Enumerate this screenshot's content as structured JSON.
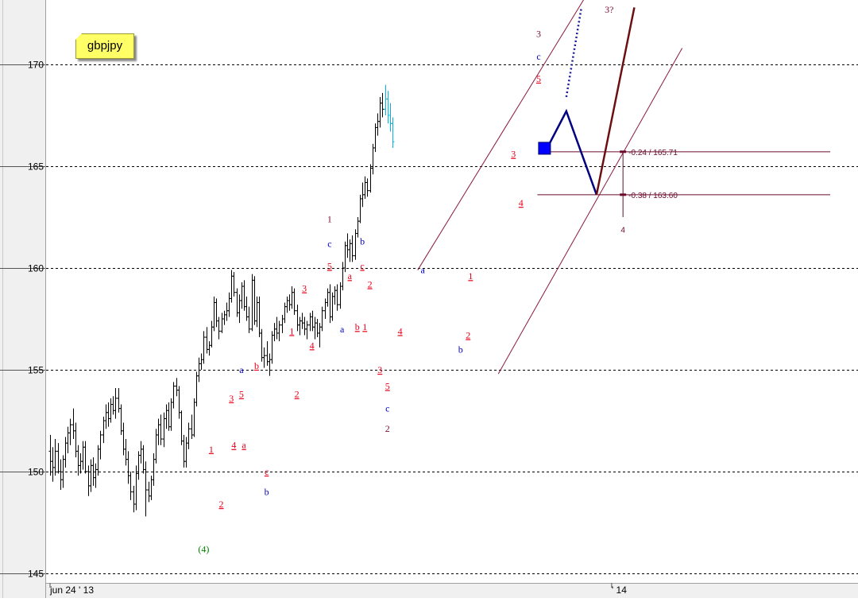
{
  "symbol_note": "gbpjpy",
  "colors": {
    "bars": "#000000",
    "last_bars": "#00b4e6",
    "channel": "#8b1a3a",
    "wave_red": "#e8001a",
    "wave_blue": "#0000cc",
    "wave_dark": "#7a1030",
    "wave_green": "#008000",
    "projection_blue": "#000080",
    "projection_brown": "#6b1010",
    "fib": "#6a0a2a",
    "marker": "#0000ff",
    "grid": "#000000",
    "axis_bg": "#f0f0f0"
  },
  "chart_data": {
    "type": "ohlc",
    "title": "",
    "ylim": [
      144.5,
      173.2
    ],
    "y_ticks": [
      145,
      150,
      155,
      160,
      165,
      170
    ],
    "y_tick_labels": [
      "145",
      "150",
      "155",
      "160",
      "165",
      "170"
    ],
    "x_labels": [
      {
        "text": "jun 24 ' 13",
        "x": 0
      },
      {
        "text": "' 14",
        "x": 223
      }
    ],
    "grid": "horizontal dashed at major ticks",
    "ohlc": [
      [
        151.0,
        151.8,
        149.8,
        150.5
      ],
      [
        150.5,
        151.2,
        149.5,
        150.2
      ],
      [
        150.2,
        151.6,
        149.8,
        151.0
      ],
      [
        151.0,
        151.4,
        149.9,
        150.0
      ],
      [
        150.0,
        150.6,
        149.1,
        149.6
      ],
      [
        149.6,
        150.8,
        149.2,
        150.6
      ],
      [
        150.6,
        151.7,
        150.2,
        151.4
      ],
      [
        151.4,
        152.2,
        150.9,
        151.9
      ],
      [
        151.9,
        152.6,
        151.3,
        152.3
      ],
      [
        152.3,
        153.1,
        151.6,
        152.0
      ],
      [
        152.0,
        152.4,
        150.7,
        151.0
      ],
      [
        151.0,
        151.3,
        149.8,
        150.3
      ],
      [
        150.3,
        150.9,
        149.9,
        150.5
      ],
      [
        150.5,
        151.5,
        150.1,
        151.2
      ],
      [
        151.2,
        151.5,
        149.9,
        150.0
      ],
      [
        150.0,
        150.3,
        148.8,
        149.3
      ],
      [
        149.3,
        150.6,
        149.0,
        150.3
      ],
      [
        150.3,
        150.7,
        149.3,
        149.7
      ],
      [
        149.7,
        150.4,
        149.2,
        150.1
      ],
      [
        150.1,
        151.3,
        149.8,
        151.1
      ],
      [
        151.1,
        152.0,
        150.6,
        151.8
      ],
      [
        151.8,
        152.7,
        151.4,
        152.5
      ],
      [
        152.5,
        153.3,
        152.1,
        152.9
      ],
      [
        152.9,
        153.4,
        152.2,
        152.6
      ],
      [
        152.6,
        153.6,
        152.4,
        153.3
      ],
      [
        153.3,
        153.7,
        152.8,
        153.0
      ],
      [
        153.0,
        154.1,
        152.6,
        153.6
      ],
      [
        153.6,
        154.1,
        152.9,
        153.1
      ],
      [
        153.1,
        153.3,
        151.8,
        152.0
      ],
      [
        152.0,
        152.4,
        150.8,
        151.1
      ],
      [
        151.1,
        151.6,
        150.3,
        150.6
      ],
      [
        150.6,
        151.0,
        149.4,
        149.8
      ],
      [
        149.8,
        150.0,
        148.6,
        149.0
      ],
      [
        149.0,
        149.3,
        148.0,
        148.4
      ],
      [
        148.4,
        150.3,
        148.1,
        149.9
      ],
      [
        149.9,
        151.0,
        149.6,
        150.8
      ],
      [
        150.8,
        151.5,
        150.4,
        151.1
      ],
      [
        151.1,
        151.3,
        149.9,
        150.1
      ],
      [
        150.1,
        150.5,
        147.8,
        149.1
      ],
      [
        149.1,
        149.5,
        148.5,
        148.8
      ],
      [
        148.8,
        149.8,
        148.6,
        149.6
      ],
      [
        149.6,
        150.9,
        149.3,
        150.6
      ],
      [
        150.6,
        152.1,
        150.4,
        151.8
      ],
      [
        151.8,
        152.6,
        151.3,
        152.3
      ],
      [
        152.3,
        152.8,
        151.3,
        151.6
      ],
      [
        151.6,
        152.9,
        151.2,
        152.6
      ],
      [
        152.6,
        153.3,
        152.1,
        153.0
      ],
      [
        153.0,
        153.4,
        152.0,
        152.2
      ],
      [
        152.2,
        153.6,
        152.0,
        153.4
      ],
      [
        153.4,
        154.4,
        153.1,
        154.2
      ],
      [
        154.2,
        154.6,
        153.7,
        154.0
      ],
      [
        154.0,
        154.2,
        152.6,
        152.9
      ],
      [
        152.9,
        153.0,
        151.3,
        151.5
      ],
      [
        151.5,
        151.8,
        150.2,
        150.5
      ],
      [
        150.5,
        151.7,
        150.2,
        151.4
      ],
      [
        151.4,
        152.4,
        151.1,
        152.1
      ],
      [
        152.1,
        152.8,
        151.6,
        151.8
      ],
      [
        151.8,
        153.6,
        151.7,
        153.4
      ],
      [
        153.4,
        154.9,
        153.2,
        154.7
      ],
      [
        154.7,
        155.6,
        154.4,
        155.3
      ],
      [
        155.3,
        155.8,
        155.0,
        155.5
      ],
      [
        155.5,
        156.9,
        155.3,
        156.6
      ],
      [
        156.6,
        157.1,
        155.8,
        156.0
      ],
      [
        156.0,
        156.4,
        155.7,
        156.2
      ],
      [
        156.2,
        157.4,
        156.1,
        157.1
      ],
      [
        157.1,
        158.6,
        156.9,
        158.3
      ],
      [
        158.3,
        158.5,
        157.1,
        157.4
      ],
      [
        157.4,
        157.6,
        156.5,
        156.9
      ],
      [
        156.9,
        157.8,
        156.8,
        157.5
      ],
      [
        157.5,
        157.9,
        157.2,
        157.7
      ],
      [
        157.7,
        158.3,
        157.4,
        157.9
      ],
      [
        157.9,
        158.8,
        157.6,
        158.5
      ],
      [
        158.5,
        159.9,
        158.3,
        159.6
      ],
      [
        159.6,
        159.8,
        158.6,
        158.8
      ],
      [
        158.8,
        159.0,
        157.6,
        157.8
      ],
      [
        157.8,
        158.7,
        157.3,
        158.4
      ],
      [
        158.4,
        159.3,
        158.0,
        159.1
      ],
      [
        159.1,
        159.4,
        157.9,
        158.1
      ],
      [
        158.1,
        158.6,
        157.4,
        157.6
      ],
      [
        157.6,
        158.1,
        156.8,
        157.0
      ],
      [
        157.0,
        159.7,
        156.9,
        159.4
      ],
      [
        159.4,
        159.6,
        157.2,
        157.4
      ],
      [
        157.4,
        158.6,
        157.1,
        158.3
      ],
      [
        158.3,
        158.6,
        156.6,
        156.8
      ],
      [
        156.8,
        157.0,
        155.4,
        155.6
      ],
      [
        155.6,
        156.1,
        155.1,
        155.7
      ],
      [
        155.7,
        156.4,
        155.2,
        155.4
      ],
      [
        155.4,
        155.8,
        154.7,
        155.5
      ],
      [
        155.5,
        156.9,
        155.3,
        156.7
      ],
      [
        156.7,
        157.3,
        156.4,
        157.0
      ],
      [
        157.0,
        157.6,
        156.5,
        156.8
      ],
      [
        156.8,
        157.4,
        156.4,
        157.2
      ],
      [
        157.2,
        157.7,
        156.8,
        157.5
      ],
      [
        157.5,
        158.3,
        157.3,
        158.1
      ],
      [
        158.1,
        158.6,
        157.8,
        158.4
      ],
      [
        158.4,
        158.7,
        157.9,
        158.2
      ],
      [
        158.2,
        159.1,
        158.0,
        158.8
      ],
      [
        158.8,
        159.0,
        157.7,
        157.9
      ],
      [
        157.9,
        158.2,
        156.9,
        157.2
      ],
      [
        157.2,
        157.6,
        156.7,
        157.4
      ],
      [
        157.4,
        157.8,
        157.0,
        157.3
      ],
      [
        157.3,
        157.6,
        156.7,
        157.0
      ],
      [
        157.0,
        157.4,
        156.5,
        157.2
      ],
      [
        157.2,
        157.8,
        156.9,
        157.6
      ],
      [
        157.6,
        157.9,
        156.9,
        157.1
      ],
      [
        157.1,
        157.6,
        156.5,
        157.3
      ],
      [
        157.3,
        157.5,
        156.6,
        156.8
      ],
      [
        156.8,
        157.3,
        156.1,
        157.1
      ],
      [
        157.1,
        158.1,
        156.9,
        157.9
      ],
      [
        157.9,
        158.5,
        157.5,
        158.3
      ],
      [
        158.3,
        159.0,
        158.1,
        158.8
      ],
      [
        158.8,
        159.2,
        157.3,
        157.6
      ],
      [
        157.6,
        158.8,
        157.4,
        158.6
      ],
      [
        158.6,
        159.1,
        158.2,
        158.9
      ],
      [
        158.9,
        159.2,
        157.9,
        158.2
      ],
      [
        158.2,
        159.3,
        158.0,
        159.1
      ],
      [
        159.1,
        160.3,
        158.9,
        160.0
      ],
      [
        160.0,
        161.3,
        159.8,
        161.1
      ],
      [
        161.1,
        161.7,
        160.5,
        160.9
      ],
      [
        160.9,
        161.4,
        160.3,
        161.2
      ],
      [
        161.2,
        161.6,
        160.3,
        160.6
      ],
      [
        160.6,
        161.9,
        160.4,
        161.7
      ],
      [
        161.7,
        162.5,
        161.5,
        162.3
      ],
      [
        162.3,
        163.6,
        162.2,
        163.4
      ],
      [
        163.4,
        164.2,
        163.0,
        163.6
      ],
      [
        163.6,
        164.5,
        163.4,
        164.2
      ],
      [
        164.2,
        164.4,
        163.5,
        163.8
      ],
      [
        163.8,
        165.1,
        163.7,
        164.9
      ],
      [
        164.9,
        166.1,
        164.6,
        165.9
      ],
      [
        165.9,
        167.1,
        165.7,
        166.9
      ],
      [
        166.9,
        167.6,
        166.5,
        167.2
      ],
      [
        167.2,
        168.4,
        166.9,
        168.1
      ],
      [
        168.1,
        168.6,
        167.4,
        167.8
      ],
      [
        167.8,
        169.0,
        167.5,
        168.3
      ],
      [
        168.3,
        168.7,
        167.1,
        167.5
      ],
      [
        167.5,
        168.1,
        166.7,
        167.1
      ],
      [
        167.1,
        167.4,
        165.9,
        166.2
      ]
    ],
    "highlighted_last_bars": 4,
    "channel_lines": [
      {
        "from": [
          146,
          159.9
        ],
        "to": [
          212,
          173.2
        ]
      },
      {
        "from": [
          178,
          154.8
        ],
        "to": [
          251,
          170.8
        ]
      }
    ],
    "fib_levels": [
      {
        "label": "-0.24 / 165.71",
        "value": 165.71
      },
      {
        "label": "-0.38 / 163.60",
        "value": 163.6
      }
    ],
    "fib_end_label": "4",
    "projection_blue": [
      [
        197,
        165.8
      ],
      [
        205,
        167.7
      ],
      [
        217,
        163.6
      ]
    ],
    "projection_blue_dotted": [
      [
        205,
        168.4
      ],
      [
        211,
        172.8
      ]
    ],
    "projection_brown": [
      [
        217,
        163.6
      ],
      [
        232,
        172.8
      ]
    ],
    "marker": {
      "x": 196.5,
      "y": 165.9
    },
    "wave_labels": [
      {
        "text": "(4)",
        "x": 61,
        "y": 146.2,
        "color": "wave_green"
      },
      {
        "text": "1",
        "x": 64,
        "y": 151.1,
        "color": "wave_red",
        "u": true
      },
      {
        "text": "2",
        "x": 68,
        "y": 148.4,
        "color": "wave_red",
        "u": true
      },
      {
        "text": "3",
        "x": 72,
        "y": 153.6,
        "color": "wave_red",
        "u": true
      },
      {
        "text": "4",
        "x": 73,
        "y": 151.3,
        "color": "wave_red",
        "u": true
      },
      {
        "text": "5",
        "x": 76,
        "y": 153.8,
        "color": "wave_red",
        "u": true
      },
      {
        "text": "a",
        "x": 77,
        "y": 151.3,
        "color": "wave_red",
        "u": true
      },
      {
        "text": "a",
        "x": 76,
        "y": 155.0,
        "color": "wave_blue"
      },
      {
        "text": "b",
        "x": 82,
        "y": 155.2,
        "color": "wave_red",
        "u": true
      },
      {
        "text": "c",
        "x": 86,
        "y": 150.0,
        "color": "wave_red",
        "u": true
      },
      {
        "text": "b",
        "x": 86,
        "y": 149.0,
        "color": "wave_blue"
      },
      {
        "text": "1",
        "x": 96,
        "y": 156.9,
        "color": "wave_red",
        "u": true
      },
      {
        "text": "2",
        "x": 98,
        "y": 153.8,
        "color": "wave_red",
        "u": true
      },
      {
        "text": "3",
        "x": 101,
        "y": 159.0,
        "color": "wave_red",
        "u": true
      },
      {
        "text": "4",
        "x": 104,
        "y": 156.2,
        "color": "wave_red",
        "u": true
      },
      {
        "text": "1",
        "x": 111,
        "y": 162.4,
        "color": "wave_dark"
      },
      {
        "text": "c",
        "x": 111,
        "y": 161.2,
        "color": "wave_blue"
      },
      {
        "text": "5",
        "x": 111,
        "y": 160.1,
        "color": "wave_red",
        "u": true
      },
      {
        "text": "a",
        "x": 116,
        "y": 157.0,
        "color": "wave_blue"
      },
      {
        "text": "a",
        "x": 119,
        "y": 159.6,
        "color": "wave_red",
        "u": true
      },
      {
        "text": "b",
        "x": 122,
        "y": 157.1,
        "color": "wave_red",
        "u": true
      },
      {
        "text": "1",
        "x": 125,
        "y": 157.1,
        "color": "wave_red",
        "u": true
      },
      {
        "text": "c",
        "x": 124,
        "y": 160.1,
        "color": "wave_red",
        "u": true
      },
      {
        "text": "b",
        "x": 124,
        "y": 161.3,
        "color": "wave_blue"
      },
      {
        "text": "2",
        "x": 127,
        "y": 159.2,
        "color": "wave_red",
        "u": true
      },
      {
        "text": "4",
        "x": 139,
        "y": 156.9,
        "color": "wave_red",
        "u": true
      },
      {
        "text": "3",
        "x": 131,
        "y": 155.0,
        "color": "wave_red",
        "u": true
      },
      {
        "text": "5",
        "x": 134,
        "y": 154.2,
        "color": "wave_red",
        "u": true
      },
      {
        "text": "c",
        "x": 134,
        "y": 153.1,
        "color": "wave_blue"
      },
      {
        "text": "2",
        "x": 134,
        "y": 152.1,
        "color": "wave_dark"
      },
      {
        "text": "a",
        "x": 148,
        "y": 159.9,
        "color": "wave_blue"
      },
      {
        "text": "b",
        "x": 163,
        "y": 156.0,
        "color": "wave_blue"
      },
      {
        "text": "1",
        "x": 167,
        "y": 159.6,
        "color": "wave_red",
        "u": true
      },
      {
        "text": "2",
        "x": 166,
        "y": 156.7,
        "color": "wave_red",
        "u": true
      },
      {
        "text": "3",
        "x": 184,
        "y": 165.6,
        "color": "wave_red",
        "u": true
      },
      {
        "text": "4",
        "x": 187,
        "y": 163.2,
        "color": "wave_red",
        "u": true
      },
      {
        "text": "3",
        "x": 194,
        "y": 171.5,
        "color": "wave_dark"
      },
      {
        "text": "c",
        "x": 194,
        "y": 170.4,
        "color": "wave_blue"
      },
      {
        "text": "5",
        "x": 194,
        "y": 169.3,
        "color": "wave_red",
        "u": true
      },
      {
        "text": "3?",
        "x": 222,
        "y": 172.7,
        "color": "wave_dark"
      }
    ]
  }
}
